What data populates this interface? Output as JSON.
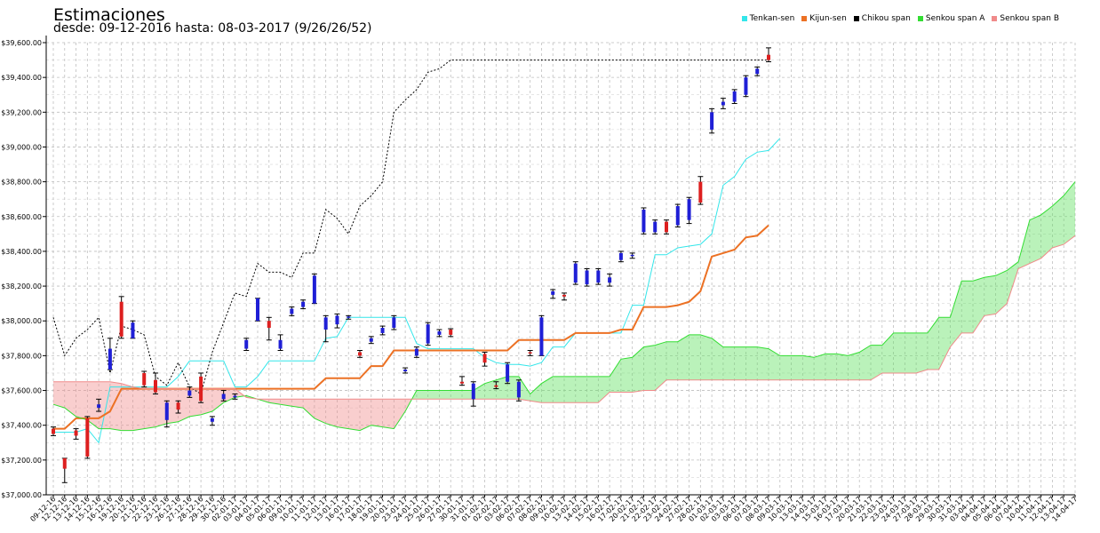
{
  "header": {
    "title": "Estimaciones",
    "subtitle": "desde: 09-12-2016 hasta: 08-03-2017 (9/26/26/52)"
  },
  "legend": [
    {
      "label": "Tenkan-sen",
      "color": "#33e6ea"
    },
    {
      "label": "Kijun-sen",
      "color": "#ec7124"
    },
    {
      "label": "Chikou span",
      "color": "#000000"
    },
    {
      "label": "Senkou span A",
      "color": "#33dd33"
    },
    {
      "label": "Senkou span B",
      "color": "#f08a8a"
    }
  ],
  "chart_data": {
    "type": "line",
    "title": "Estimaciones",
    "subtitle": "desde: 09-12-2016 hasta: 08-03-2017 (9/26/26/52)",
    "ylim": [
      37000,
      39600
    ],
    "y_ticks": [
      37000,
      37200,
      37400,
      37600,
      37800,
      38000,
      38200,
      38400,
      38600,
      38800,
      39000,
      39200,
      39400,
      39600
    ],
    "y_tick_labels": [
      "$37,000.00",
      "$37,200.00",
      "$37,400.00",
      "$37,600.00",
      "$37,800.00",
      "$38,000.00",
      "$38,200.00",
      "$38,400.00",
      "$38,600.00",
      "$38,800.00",
      "$39,000.00",
      "$39,200.00",
      "$39,400.00",
      "$39,600.00"
    ],
    "grid": true,
    "legend_position": "top-right",
    "x": [
      "09-12-16",
      "12-12-16",
      "13-12-16",
      "14-12-16",
      "15-12-16",
      "16-12-16",
      "19-12-16",
      "20-12-16",
      "21-12-16",
      "22-12-16",
      "23-12-16",
      "26-12-16",
      "27-12-16",
      "28-12-16",
      "29-12-16",
      "30-12-16",
      "02-01-17",
      "03-01-17",
      "04-01-17",
      "05-01-17",
      "06-01-17",
      "09-01-17",
      "10-01-17",
      "11-01-17",
      "12-01-17",
      "13-01-17",
      "16-01-17",
      "17-01-17",
      "18-01-17",
      "19-01-17",
      "20-01-17",
      "23-01-17",
      "24-01-17",
      "25-01-17",
      "26-01-17",
      "27-01-17",
      "30-01-17",
      "31-01-17",
      "01-02-17",
      "02-02-17",
      "03-02-17",
      "06-02-17",
      "07-02-17",
      "08-02-17",
      "09-02-17",
      "10-02-17",
      "13-02-17",
      "14-02-17",
      "15-02-17",
      "16-02-17",
      "17-02-17",
      "20-02-17",
      "21-02-17",
      "22-02-17",
      "23-02-17",
      "24-02-17",
      "27-02-17",
      "28-02-17",
      "01-03-17",
      "02-03-17",
      "03-03-17",
      "06-03-17",
      "07-03-17",
      "08-03-17",
      "09-03-17",
      "10-03-17",
      "13-03-17",
      "14-03-17",
      "15-03-17",
      "16-03-17",
      "17-03-17",
      "20-03-17",
      "21-03-17",
      "22-03-17",
      "23-03-17",
      "24-03-17",
      "27-03-17",
      "28-03-17",
      "29-03-17",
      "30-03-17",
      "31-03-17",
      "03-04-17",
      "04-04-17",
      "05-04-17",
      "06-04-17",
      "07-04-17",
      "10-04-17",
      "11-04-17",
      "12-04-17",
      "13-04-17",
      "14-04-17"
    ],
    "x_tick_labels": [
      "09-12-16",
      "12-12-16",
      "13-12-16",
      "14-12-16",
      "15-12-16",
      "16-12-16",
      "19-12-16",
      "20-12-16",
      "21-12-16",
      "22-12-16",
      "23-12-16",
      "26-12-16",
      "27-12-16",
      "28-12-16",
      "29-12-16",
      "30-12-16",
      "02-01-17",
      "03-01-17",
      "04-01-17",
      "05-01-17",
      "06-01-17",
      "09-01-17",
      "10-01-17",
      "11-01-17",
      "12-01-17",
      "13-01-17",
      "16-01-17",
      "17-01-17",
      "18-01-17",
      "19-01-17",
      "20-01-17",
      "23-01-17",
      "24-01-17",
      "25-01-17",
      "26-01-17",
      "27-01-17",
      "30-01-17",
      "31-01-17",
      "01-02-17",
      "02-02-17",
      "03-02-17",
      "06-02-17",
      "07-02-17",
      "08-02-17",
      "09-02-17",
      "10-02-17",
      "13-02-17",
      "14-02-17",
      "15-02-17",
      "16-02-17",
      "17-02-17",
      "20-02-17",
      "21-02-17",
      "22-02-17",
      "23-02-17",
      "24-02-17",
      "27-02-17",
      "28-02-17",
      "01-03-17",
      "02-03-17",
      "03-03-17",
      "06-03-17",
      "07-03-17",
      "08-03-17",
      "09-03-17",
      "10-03-17",
      "13-03-17",
      "14-03-17",
      "15-03-17",
      "16-03-17",
      "17-03-17",
      "20-03-17",
      "21-03-17",
      "22-03-17",
      "23-03-17",
      "24-03-17",
      "27-03-17",
      "28-03-17",
      "29-03-17",
      "30-03-17",
      "31-03-17",
      "03-04-17",
      "04-04-17",
      "05-04-17",
      "06-04-17",
      "07-04-17",
      "10-04-17",
      "11-04-17",
      "12-04-17",
      "13-04-17",
      "14-04-17"
    ],
    "candles": [
      {
        "o": 37380,
        "h": 37390,
        "l": 37340,
        "c": 37350
      },
      {
        "o": 37210,
        "h": 37210,
        "l": 37070,
        "c": 37150
      },
      {
        "o": 37370,
        "h": 37380,
        "l": 37320,
        "c": 37340
      },
      {
        "o": 37440,
        "h": 37450,
        "l": 37210,
        "c": 37220
      },
      {
        "o": 37500,
        "h": 37550,
        "l": 37480,
        "c": 37520
      },
      {
        "o": 37720,
        "h": 37900,
        "l": 37720,
        "c": 37840
      },
      {
        "o": 38110,
        "h": 38140,
        "l": 37900,
        "c": 37910
      },
      {
        "o": 37900,
        "h": 38000,
        "l": 37900,
        "c": 37990
      },
      {
        "o": 37700,
        "h": 37710,
        "l": 37620,
        "c": 37630
      },
      {
        "o": 37660,
        "h": 37700,
        "l": 37580,
        "c": 37590
      },
      {
        "o": 37430,
        "h": 37540,
        "l": 37390,
        "c": 37530
      },
      {
        "o": 37530,
        "h": 37540,
        "l": 37470,
        "c": 37490
      },
      {
        "o": 37570,
        "h": 37620,
        "l": 37560,
        "c": 37600
      },
      {
        "o": 37680,
        "h": 37700,
        "l": 37530,
        "c": 37540
      },
      {
        "o": 37420,
        "h": 37450,
        "l": 37400,
        "c": 37440
      },
      {
        "o": 37550,
        "h": 37600,
        "l": 37540,
        "c": 37580
      },
      {
        "o": 37560,
        "h": 37580,
        "l": 37550,
        "c": 37570
      },
      {
        "o": 37840,
        "h": 37900,
        "l": 37830,
        "c": 37890
      },
      {
        "o": 38000,
        "h": 38130,
        "l": 38000,
        "c": 38130
      },
      {
        "o": 38000,
        "h": 38020,
        "l": 37890,
        "c": 37960
      },
      {
        "o": 37840,
        "h": 37920,
        "l": 37830,
        "c": 37890
      },
      {
        "o": 38040,
        "h": 38080,
        "l": 38030,
        "c": 38070
      },
      {
        "o": 38080,
        "h": 38120,
        "l": 38070,
        "c": 38110
      },
      {
        "o": 38100,
        "h": 38270,
        "l": 38100,
        "c": 38260
      },
      {
        "o": 37950,
        "h": 38030,
        "l": 37880,
        "c": 38020
      },
      {
        "o": 37980,
        "h": 38040,
        "l": 37960,
        "c": 38030
      },
      {
        "o": 38020,
        "h": 38030,
        "l": 38010,
        "c": 38025
      },
      {
        "o": 37820,
        "h": 37830,
        "l": 37790,
        "c": 37800
      },
      {
        "o": 37880,
        "h": 37910,
        "l": 37870,
        "c": 37900
      },
      {
        "o": 37930,
        "h": 37970,
        "l": 37920,
        "c": 37960
      },
      {
        "o": 37960,
        "h": 38030,
        "l": 37950,
        "c": 38020
      },
      {
        "o": 37710,
        "h": 37730,
        "l": 37700,
        "c": 37720
      },
      {
        "o": 37800,
        "h": 37850,
        "l": 37790,
        "c": 37840
      },
      {
        "o": 37870,
        "h": 37990,
        "l": 37860,
        "c": 37980
      },
      {
        "o": 37920,
        "h": 37950,
        "l": 37910,
        "c": 37940
      },
      {
        "o": 37950,
        "h": 37955,
        "l": 37910,
        "c": 37920
      },
      {
        "o": 37650,
        "h": 37680,
        "l": 37630,
        "c": 37640
      },
      {
        "o": 37550,
        "h": 37650,
        "l": 37510,
        "c": 37640
      },
      {
        "o": 37810,
        "h": 37820,
        "l": 37740,
        "c": 37760
      },
      {
        "o": 37630,
        "h": 37650,
        "l": 37610,
        "c": 37620
      },
      {
        "o": 37650,
        "h": 37760,
        "l": 37640,
        "c": 37750
      },
      {
        "o": 37560,
        "h": 37660,
        "l": 37540,
        "c": 37650
      },
      {
        "o": 37820,
        "h": 37830,
        "l": 37800,
        "c": 37815
      },
      {
        "o": 37800,
        "h": 38030,
        "l": 37800,
        "c": 38020
      },
      {
        "o": 38150,
        "h": 38180,
        "l": 38130,
        "c": 38170
      },
      {
        "o": 38150,
        "h": 38160,
        "l": 38120,
        "c": 38140
      },
      {
        "o": 38220,
        "h": 38340,
        "l": 38210,
        "c": 38330
      },
      {
        "o": 38210,
        "h": 38300,
        "l": 38200,
        "c": 38290
      },
      {
        "o": 38220,
        "h": 38300,
        "l": 38210,
        "c": 38290
      },
      {
        "o": 38220,
        "h": 38270,
        "l": 38200,
        "c": 38250
      },
      {
        "o": 38350,
        "h": 38400,
        "l": 38340,
        "c": 38390
      },
      {
        "o": 38375,
        "h": 38390,
        "l": 38360,
        "c": 38380
      },
      {
        "o": 38510,
        "h": 38650,
        "l": 38500,
        "c": 38640
      },
      {
        "o": 38510,
        "h": 38580,
        "l": 38500,
        "c": 38570
      },
      {
        "o": 38570,
        "h": 38580,
        "l": 38500,
        "c": 38510
      },
      {
        "o": 38550,
        "h": 38670,
        "l": 38540,
        "c": 38660
      },
      {
        "o": 38580,
        "h": 38710,
        "l": 38560,
        "c": 38700
      },
      {
        "o": 38800,
        "h": 38830,
        "l": 38670,
        "c": 38680
      },
      {
        "o": 39100,
        "h": 39220,
        "l": 39080,
        "c": 39200
      },
      {
        "o": 39240,
        "h": 39280,
        "l": 39220,
        "c": 39260
      },
      {
        "o": 39260,
        "h": 39330,
        "l": 39250,
        "c": 39320
      },
      {
        "o": 39300,
        "h": 39410,
        "l": 39290,
        "c": 39400
      },
      {
        "o": 39420,
        "h": 39460,
        "l": 39410,
        "c": 39450
      },
      {
        "o": 39530,
        "h": 39570,
        "l": 39490,
        "c": 39500
      }
    ],
    "series": [
      {
        "name": "Tenkan-sen",
        "color": "#33e6ea",
        "values": [
          37360,
          37360,
          37360,
          37380,
          37300,
          37620,
          37620,
          37620,
          37620,
          37620,
          37620,
          37680,
          37770,
          37770,
          37770,
          37770,
          37620,
          37620,
          37680,
          37770,
          37770,
          37770,
          37770,
          37770,
          37900,
          37910,
          38020,
          38020,
          38020,
          38020,
          38020,
          38020,
          37870,
          37840,
          37840,
          37840,
          37840,
          37840,
          37790,
          37760,
          37750,
          37750,
          37740,
          37760,
          37850,
          37850,
          37930,
          37930,
          37930,
          37930,
          37930,
          38090,
          38090,
          38380,
          38380,
          38420,
          38430,
          38440,
          38500,
          38780,
          38830,
          38930,
          38970,
          38980,
          39050,
          null,
          null,
          null,
          null,
          null,
          null,
          null,
          null,
          null,
          null,
          null,
          null,
          null,
          null,
          null,
          null,
          null,
          null,
          null,
          null,
          null,
          null,
          null,
          null,
          null,
          null
        ]
      },
      {
        "name": "Kijun-sen",
        "color": "#ec7124",
        "values": [
          37380,
          37380,
          37440,
          37440,
          37440,
          37480,
          37610,
          37610,
          37610,
          37610,
          37610,
          37610,
          37610,
          37610,
          37610,
          37610,
          37610,
          37610,
          37610,
          37610,
          37610,
          37610,
          37610,
          37610,
          37670,
          37670,
          37670,
          37670,
          37740,
          37740,
          37830,
          37830,
          37830,
          37830,
          37830,
          37830,
          37830,
          37830,
          37830,
          37830,
          37830,
          37890,
          37890,
          37890,
          37890,
          37890,
          37930,
          37930,
          37930,
          37930,
          37950,
          37950,
          38080,
          38080,
          38080,
          38090,
          38110,
          38170,
          38370,
          38390,
          38410,
          38480,
          38490,
          38550,
          null,
          null,
          null,
          null,
          null,
          null,
          null,
          null,
          null,
          null,
          null,
          null,
          null,
          null,
          null,
          null,
          null,
          null,
          null,
          null,
          null,
          null,
          null,
          null,
          null,
          null,
          null
        ]
      },
      {
        "name": "Chikou span",
        "color": "#000000",
        "values": [
          38020,
          37800,
          37900,
          37950,
          38020,
          37700,
          37970,
          37950,
          37920,
          37680,
          37630,
          37760,
          37620,
          37580,
          37820,
          37990,
          38160,
          38140,
          38330,
          38280,
          38280,
          38250,
          38390,
          38390,
          38640,
          38590,
          38500,
          38660,
          38720,
          38800,
          39200,
          39270,
          39330,
          39430,
          39450,
          39500,
          39500,
          39500,
          39500,
          39500,
          39500,
          39500,
          39500,
          39500,
          39500,
          39500,
          39500,
          39500,
          39500,
          39500,
          39500,
          39500,
          39500,
          39500,
          39500,
          39500,
          39500,
          39500,
          39500,
          39500,
          39500,
          39500,
          39500,
          39500,
          null,
          null,
          null,
          null,
          null,
          null,
          null,
          null,
          null,
          null,
          null,
          null,
          null,
          null,
          null,
          null,
          null,
          null,
          null,
          null,
          null,
          null,
          null,
          null,
          null,
          null,
          null
        ]
      },
      {
        "name": "Senkou span A",
        "color": "#33dd33",
        "values": [
          37520,
          37500,
          37450,
          37430,
          37380,
          37380,
          37370,
          37370,
          37380,
          37390,
          37410,
          37420,
          37450,
          37460,
          37480,
          37530,
          37560,
          37570,
          37550,
          37530,
          37520,
          37510,
          37500,
          37440,
          37410,
          37390,
          37380,
          37370,
          37400,
          37390,
          37380,
          37480,
          37600,
          37600,
          37600,
          37600,
          37600,
          37600,
          37640,
          37660,
          37680,
          37680,
          37580,
          37640,
          37680,
          37680,
          37680,
          37680,
          37680,
          37680,
          37780,
          37790,
          37850,
          37860,
          37880,
          37880,
          37920,
          37920,
          37900,
          37850,
          37850,
          37850,
          37850,
          37840,
          37800,
          37800,
          37800,
          37790,
          37810,
          37810,
          37800,
          37820,
          37860,
          37860,
          37930,
          37930,
          37930,
          37930,
          38020,
          38020,
          38230,
          38230,
          38250,
          38260,
          38290,
          38340,
          38580,
          38610,
          38660,
          38720,
          38800
        ]
      },
      {
        "name": "Senkou span B",
        "color": "#f08a8a",
        "values": [
          37650,
          37650,
          37650,
          37650,
          37650,
          37650,
          37640,
          37620,
          37610,
          37610,
          37610,
          37610,
          37610,
          37610,
          37610,
          37610,
          37610,
          37560,
          37550,
          37550,
          37550,
          37550,
          37550,
          37550,
          37550,
          37550,
          37550,
          37550,
          37550,
          37550,
          37550,
          37550,
          37550,
          37550,
          37550,
          37550,
          37550,
          37550,
          37550,
          37550,
          37550,
          37550,
          37540,
          37530,
          37530,
          37530,
          37530,
          37530,
          37530,
          37590,
          37590,
          37590,
          37600,
          37600,
          37660,
          37660,
          37660,
          37660,
          37660,
          37660,
          37660,
          37660,
          37660,
          37660,
          37660,
          37660,
          37660,
          37660,
          37660,
          37660,
          37660,
          37660,
          37660,
          37700,
          37700,
          37700,
          37700,
          37720,
          37720,
          37850,
          37930,
          37930,
          38030,
          38040,
          38100,
          38300,
          38330,
          38360,
          38420,
          38440,
          38490
        ]
      }
    ]
  }
}
